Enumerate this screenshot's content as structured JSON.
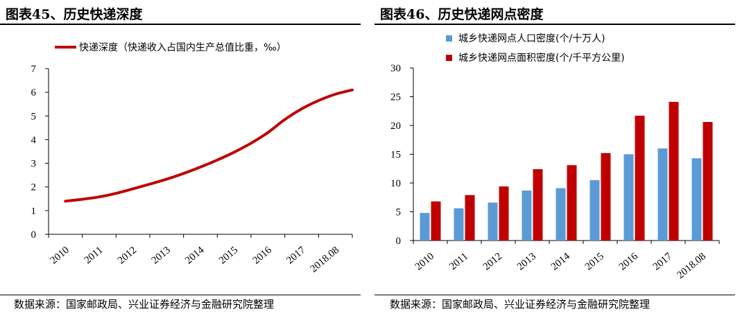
{
  "left": {
    "figure_title": "图表45、历史快递深度",
    "source": "数据来源：国家邮政局、兴业证券经济与金融研究院整理"
  },
  "right": {
    "figure_title": "图表46、历史快递网点密度",
    "source": "数据来源：国家邮政局、兴业证券经济与金融研究院整理"
  },
  "colors": {
    "red": "#c00000",
    "blue": "#5b9bd5",
    "axis": "#000000"
  },
  "chart_data": [
    {
      "type": "line",
      "title": "",
      "xlabel": "",
      "ylabel": "",
      "categories": [
        "2010",
        "2011",
        "2012",
        "2013",
        "2014",
        "2015",
        "2016",
        "2017",
        "2018.08"
      ],
      "ylim": [
        0,
        7
      ],
      "yticks": [
        0,
        1,
        2,
        3,
        4,
        5,
        6,
        7
      ],
      "grid": false,
      "legend_position": "top",
      "series": [
        {
          "name": "快递深度（快递收入占国内生产总值比重，‰）",
          "color": "#c00000",
          "x": [
            2010.0,
            2010.5,
            2011.0,
            2011.5,
            2012.0,
            2012.5,
            2013.0,
            2013.5,
            2014.0,
            2014.5,
            2015.0,
            2015.5,
            2016.0,
            2016.5,
            2017.0,
            2017.5,
            2018.0,
            2018.5
          ],
          "values": [
            1.4,
            1.48,
            1.58,
            1.73,
            1.92,
            2.12,
            2.33,
            2.57,
            2.84,
            3.14,
            3.47,
            3.85,
            4.3,
            4.85,
            5.3,
            5.65,
            5.92,
            6.1
          ]
        }
      ]
    },
    {
      "type": "bar",
      "title": "",
      "xlabel": "",
      "ylabel": "",
      "categories": [
        "2010",
        "2011",
        "2012",
        "2013",
        "2014",
        "2015",
        "2016",
        "2017",
        "2018.08"
      ],
      "ylim": [
        0,
        30
      ],
      "yticks": [
        0,
        5,
        10,
        15,
        20,
        25,
        30
      ],
      "grid": false,
      "legend_position": "top",
      "series": [
        {
          "name": "城乡快递网点人口密度(个/十万人)",
          "color": "#5b9bd5",
          "values": [
            4.8,
            5.6,
            6.6,
            8.7,
            9.1,
            10.5,
            15.0,
            16.0,
            14.3
          ]
        },
        {
          "name": "城乡快递网点面积密度(个/千平方公里)",
          "color": "#c00000",
          "values": [
            6.8,
            7.9,
            9.4,
            12.4,
            13.1,
            15.2,
            21.7,
            24.1,
            20.6
          ]
        }
      ]
    }
  ]
}
